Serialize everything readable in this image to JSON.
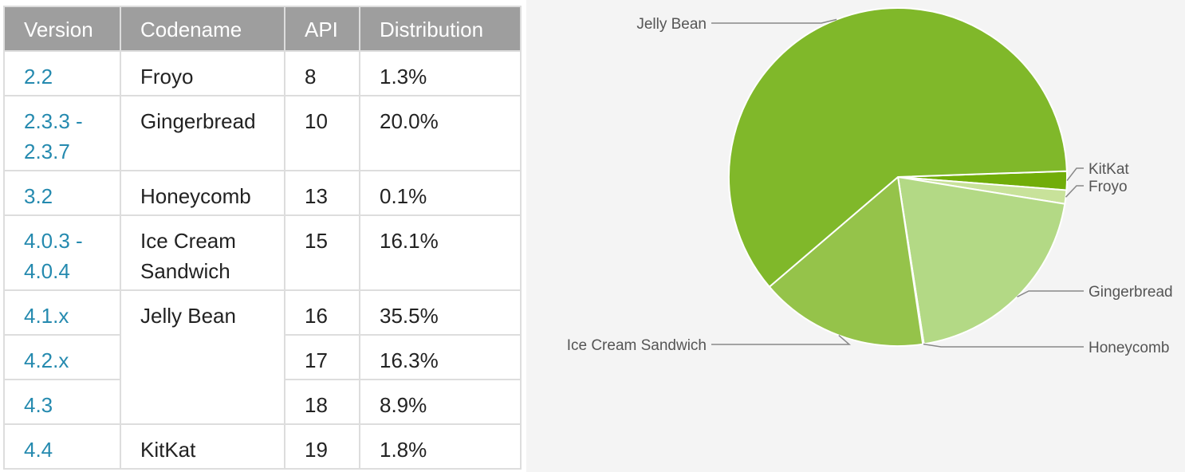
{
  "table": {
    "headers": [
      "Version",
      "Codename",
      "API",
      "Distribution"
    ],
    "rows": [
      {
        "version": "2.2",
        "codename": "Froyo",
        "api": "8",
        "distribution": "1.3%"
      },
      {
        "version": "2.3.3 - 2.3.7",
        "codename": "Gingerbread",
        "api": "10",
        "distribution": "20.0%"
      },
      {
        "version": "3.2",
        "codename": "Honeycomb",
        "api": "13",
        "distribution": "0.1%"
      },
      {
        "version": "4.0.3 - 4.0.4",
        "codename": "Ice Cream Sandwich",
        "api": "15",
        "distribution": "16.1%"
      },
      {
        "version": "4.1.x",
        "codename": "Jelly Bean",
        "api": "16",
        "distribution": "35.5%"
      },
      {
        "version": "4.2.x",
        "codename": "",
        "api": "17",
        "distribution": "16.3%"
      },
      {
        "version": "4.3",
        "codename": "",
        "api": "18",
        "distribution": "8.9%"
      },
      {
        "version": "4.4",
        "codename": "KitKat",
        "api": "19",
        "distribution": "1.8%"
      }
    ]
  },
  "chart_data": {
    "type": "pie",
    "slices": [
      {
        "label": "KitKat",
        "value": 1.8,
        "color": "#71ad09"
      },
      {
        "label": "Froyo",
        "value": 1.3,
        "color": "#c8e29a"
      },
      {
        "label": "Gingerbread",
        "value": 20.0,
        "color": "#b3d985"
      },
      {
        "label": "Honeycomb",
        "value": 0.1,
        "color": "#dcedc5"
      },
      {
        "label": "Ice Cream Sandwich",
        "value": 16.1,
        "color": "#95c34a"
      },
      {
        "label": "Jelly Bean",
        "value": 60.7,
        "color": "#80b82a"
      }
    ],
    "legend": "callout-labels"
  }
}
